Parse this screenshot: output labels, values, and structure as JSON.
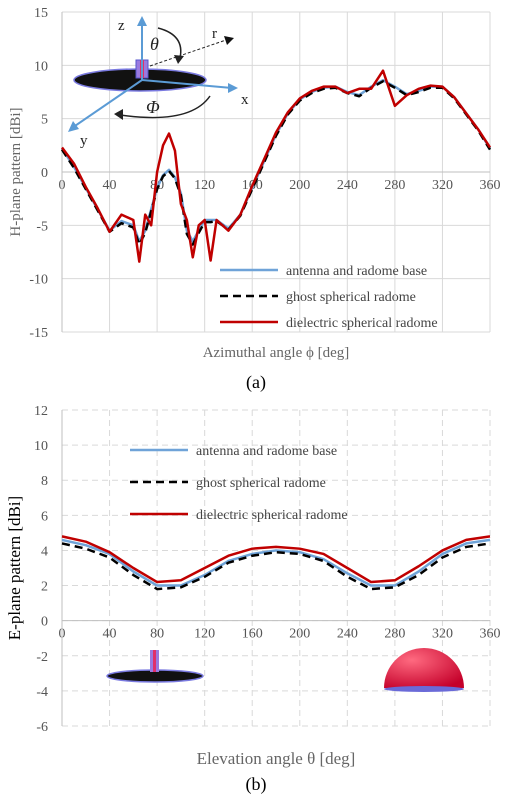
{
  "chart_data": [
    {
      "type": "line",
      "caption": "(a)",
      "x_label": "Azimuthal angle ϕ [deg]",
      "y_label": "H-plane pattern [dBi]",
      "annotations": [
        "z",
        "θ",
        "r",
        "x",
        "y",
        "Φ"
      ],
      "xlim": [
        0,
        360
      ],
      "xticks": [
        0,
        40,
        80,
        120,
        160,
        200,
        240,
        280,
        320,
        360
      ],
      "ylim": [
        -15,
        15
      ],
      "yticks": [
        -15,
        -10,
        -5,
        0,
        5,
        10,
        15
      ],
      "grid": true,
      "grid_style": "solid",
      "legend": "lower right",
      "x": [
        0,
        10,
        20,
        30,
        40,
        50,
        60,
        65,
        70,
        75,
        80,
        85,
        90,
        95,
        100,
        105,
        110,
        115,
        120,
        125,
        130,
        140,
        150,
        160,
        170,
        180,
        190,
        200,
        210,
        220,
        230,
        240,
        250,
        260,
        270,
        280,
        290,
        300,
        310,
        320,
        330,
        340,
        350,
        360
      ],
      "series": [
        {
          "name": "antenna and radome base",
          "color": "#6fa3d8",
          "dash": "solid",
          "values": [
            2.2,
            0.5,
            -1.5,
            -3.5,
            -5.5,
            -4.6,
            -5,
            -6.5,
            -5.5,
            -3.5,
            -1.5,
            -0.3,
            0.2,
            -0.5,
            -2,
            -5.5,
            -6.5,
            -5.5,
            -4.5,
            -4.5,
            -4.5,
            -5.3,
            -4,
            -1.5,
            1,
            3.5,
            5.5,
            6.8,
            7.5,
            7.9,
            8,
            7.5,
            7.2,
            8,
            8.6,
            8,
            7.3,
            7.6,
            8,
            8,
            7,
            5.5,
            4,
            2.2
          ]
        },
        {
          "name": "ghost spherical radome",
          "color": "#000000",
          "dash": "dashed",
          "values": [
            2.1,
            0.4,
            -1.6,
            -3.6,
            -5.6,
            -4.8,
            -5.2,
            -6.8,
            -5.7,
            -3.7,
            -1.6,
            -0.4,
            0.1,
            -0.6,
            -2.2,
            -5.8,
            -6.8,
            -5.7,
            -4.7,
            -4.7,
            -4.6,
            -5.4,
            -4.1,
            -1.6,
            0.9,
            3.4,
            5.4,
            6.7,
            7.4,
            7.8,
            7.9,
            7.4,
            7.1,
            7.9,
            8.5,
            7.9,
            7.2,
            7.5,
            7.9,
            7.9,
            6.9,
            5.4,
            3.9,
            2.1
          ]
        },
        {
          "name": "dielectric spherical radome",
          "color": "#c00000",
          "dash": "solid",
          "values": [
            2.3,
            0.8,
            -1.4,
            -3.4,
            -5.6,
            -4,
            -4.5,
            -8.4,
            -4,
            -5,
            0,
            2.5,
            3.6,
            2,
            -3,
            -4.5,
            -8,
            -5,
            -4.5,
            -8.3,
            -4.5,
            -5.5,
            -4,
            -1.3,
            1.2,
            3.7,
            5.6,
            6.9,
            7.6,
            8,
            8,
            7.4,
            7.8,
            7.8,
            9.5,
            6.2,
            7.2,
            7.8,
            8.1,
            8,
            7,
            5.5,
            4,
            2.3
          ]
        }
      ]
    },
    {
      "type": "line",
      "caption": "(b)",
      "x_label": "Elevation angle θ [deg]",
      "y_label": "E-plane pattern [dBi]",
      "xlim": [
        0,
        360
      ],
      "xticks": [
        0,
        40,
        80,
        120,
        160,
        200,
        240,
        280,
        320,
        360
      ],
      "ylim": [
        -6,
        12
      ],
      "yticks": [
        -6,
        -4,
        -2,
        0,
        2,
        4,
        6,
        8,
        10,
        12
      ],
      "grid": true,
      "grid_style": "dashed",
      "legend": "upper left",
      "x": [
        0,
        20,
        40,
        60,
        80,
        100,
        120,
        140,
        160,
        180,
        200,
        220,
        240,
        260,
        280,
        300,
        320,
        340,
        360
      ],
      "series": [
        {
          "name": "antenna and radome base",
          "color": "#6fa3d8",
          "dash": "solid",
          "values": [
            4.6,
            4.3,
            3.8,
            2.8,
            2.0,
            2.0,
            2.6,
            3.4,
            3.8,
            4.0,
            3.9,
            3.5,
            2.7,
            2.0,
            2.0,
            2.8,
            3.8,
            4.4,
            4.6
          ]
        },
        {
          "name": "ghost spherical radome",
          "color": "#000000",
          "dash": "dashed",
          "values": [
            4.4,
            4.1,
            3.6,
            2.6,
            1.8,
            1.9,
            2.5,
            3.3,
            3.7,
            3.9,
            3.8,
            3.4,
            2.5,
            1.8,
            1.9,
            2.6,
            3.6,
            4.2,
            4.4
          ]
        },
        {
          "name": "dielectric spherical radome",
          "color": "#c00000",
          "dash": "solid",
          "values": [
            4.8,
            4.5,
            3.9,
            3.0,
            2.2,
            2.3,
            3.0,
            3.7,
            4.1,
            4.2,
            4.1,
            3.8,
            3.0,
            2.2,
            2.3,
            3.1,
            4.0,
            4.6,
            4.8
          ]
        }
      ]
    }
  ]
}
